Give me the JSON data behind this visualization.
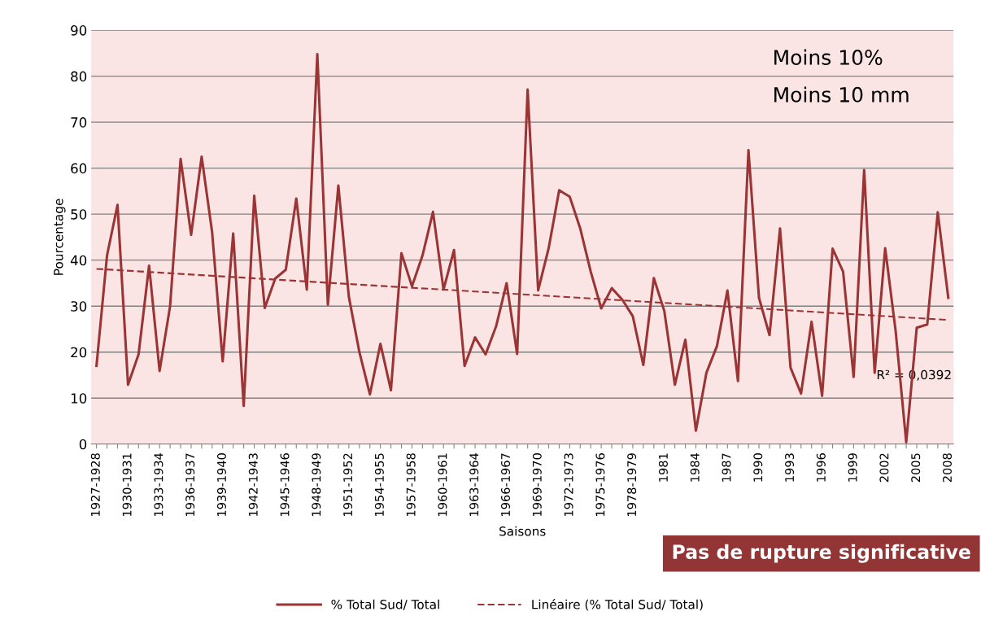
{
  "chart_data": {
    "type": "line",
    "xlabel": "Saisons",
    "ylabel": "Pourcentage",
    "categories": [
      "1927-1928",
      null,
      null,
      "1930-1931",
      null,
      null,
      "1933-1934",
      null,
      null,
      "1936-1937",
      null,
      null,
      "1939-1940",
      null,
      null,
      "1942-1943",
      null,
      null,
      "1945-1946",
      null,
      null,
      "1948-1949",
      null,
      null,
      "1951-1952",
      null,
      null,
      "1954-1955",
      null,
      null,
      "1957-1958",
      null,
      null,
      "1960-1961",
      null,
      null,
      "1963-1964",
      null,
      null,
      "1966-1967",
      null,
      null,
      "1969-1970",
      null,
      null,
      "1972-1973",
      null,
      null,
      "1975-1976",
      null,
      null,
      "1978-1979",
      null,
      null,
      "1981",
      null,
      null,
      "1984",
      null,
      null,
      "1987",
      null,
      null,
      "1990",
      null,
      null,
      "1993",
      null,
      null,
      "1996",
      null,
      null,
      "1999",
      null,
      null,
      "2002",
      null,
      null,
      "2005",
      null,
      null,
      "2008"
    ],
    "series": [
      {
        "name": "% Total Sud/ Total",
        "color": "#9b3535",
        "line_style": "solid",
        "values": [
          17,
          41,
          52,
          12.9,
          19.5,
          38.8,
          15.9,
          30,
          62,
          45.5,
          62.5,
          46,
          18,
          45.8,
          8.3,
          54,
          29.6,
          36,
          37.9,
          53.4,
          33.6,
          84.8,
          30.3,
          56.2,
          32,
          20,
          10.8,
          21.8,
          11.7,
          41.5,
          34.3,
          41,
          50.5,
          33.6,
          42.2,
          17,
          23.2,
          19.5,
          25.6,
          35,
          19.6,
          77.1,
          33.4,
          42.6,
          55.2,
          53.8,
          46.9,
          37.5,
          29.5,
          33.9,
          31.4,
          27.8,
          17.2,
          36.1,
          28.9,
          12.9,
          22.7,
          2.9,
          15.5,
          21.3,
          33.4,
          13.7,
          63.9,
          31.8,
          23.7,
          46.9,
          16.6,
          11,
          26.6,
          10.5,
          42.5,
          37.5,
          14.6,
          59.6,
          15.5,
          42.6,
          24.5,
          0.4,
          25.3,
          26,
          50.4,
          31.8
        ]
      },
      {
        "name": "Linéaire (% Total Sud/ Total)",
        "color": "#9b3535",
        "line_style": "dashed",
        "values": [
          38.1,
          null,
          null,
          null,
          null,
          null,
          null,
          null,
          null,
          null,
          null,
          null,
          null,
          null,
          null,
          null,
          null,
          null,
          null,
          null,
          null,
          null,
          null,
          null,
          null,
          null,
          null,
          null,
          null,
          null,
          null,
          null,
          null,
          null,
          null,
          null,
          null,
          null,
          null,
          null,
          null,
          null,
          null,
          null,
          null,
          null,
          null,
          null,
          null,
          null,
          null,
          null,
          null,
          null,
          null,
          null,
          null,
          null,
          null,
          null,
          null,
          null,
          null,
          null,
          null,
          null,
          null,
          null,
          null,
          null,
          null,
          null,
          null,
          null,
          null,
          null,
          null,
          null,
          null,
          null,
          null,
          27
        ]
      }
    ],
    "ylim": [
      0,
      90
    ],
    "yticks": [
      0,
      10,
      20,
      30,
      40,
      50,
      60,
      70,
      80,
      90
    ],
    "grid": "y",
    "legend": "bottom",
    "marker": "none",
    "annotations": [
      "Moins 10%",
      "Moins 10 mm",
      "R² = 0,0392",
      "Pas de rupture significative"
    ]
  }
}
